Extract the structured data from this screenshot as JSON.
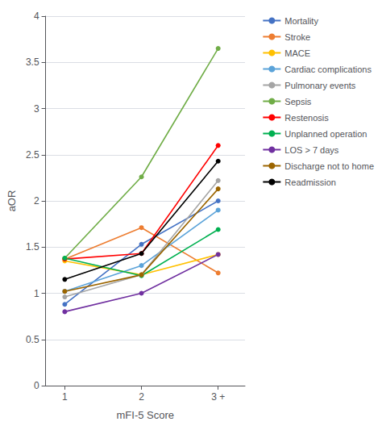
{
  "chart_data": {
    "type": "line",
    "xlabel": "mFI-5 Score",
    "ylabel": "aOR",
    "x": [
      1,
      2,
      3
    ],
    "xlim": [
      0.75,
      3.35
    ],
    "xticks": [
      1,
      2,
      {
        "value": 3,
        "label": "3 +"
      }
    ],
    "ylim": [
      0,
      4.0
    ],
    "yticks": [
      0,
      0.5,
      1,
      1.5,
      2,
      2.5,
      3,
      3.5,
      4
    ],
    "grid": "y",
    "legend": "right",
    "marker": "circle",
    "series": [
      {
        "name": "Mortality",
        "color": "#4472C4",
        "values": [
          0.88,
          1.53,
          2.0
        ]
      },
      {
        "name": "Stroke",
        "color": "#ED7D31",
        "values": [
          1.37,
          1.71,
          1.22
        ]
      },
      {
        "name": "MACE",
        "color": "#FFC000",
        "values": [
          1.35,
          1.2,
          1.42
        ]
      },
      {
        "name": "Cardiac complications",
        "color": "#5BA3D9",
        "values": [
          1.02,
          1.3,
          1.9
        ]
      },
      {
        "name": "Pulmonary events",
        "color": "#A5A5A5",
        "values": [
          0.96,
          1.2,
          2.22
        ]
      },
      {
        "name": "Sepsis",
        "color": "#70AD47",
        "values": [
          1.38,
          2.26,
          3.65
        ]
      },
      {
        "name": "Restenosis",
        "color": "#FF0000",
        "values": [
          1.37,
          1.43,
          2.6
        ]
      },
      {
        "name": "Unplanned operation",
        "color": "#00B050",
        "values": [
          1.38,
          1.19,
          1.69
        ]
      },
      {
        "name": "LOS > 7 days",
        "color": "#7030A0",
        "values": [
          0.8,
          1.0,
          1.42
        ]
      },
      {
        "name": "Discharge not to home",
        "color": "#9C6500",
        "values": [
          1.02,
          1.2,
          2.13
        ]
      },
      {
        "name": "Readmission",
        "color": "#000000",
        "values": [
          1.15,
          1.43,
          2.43
        ]
      }
    ]
  }
}
